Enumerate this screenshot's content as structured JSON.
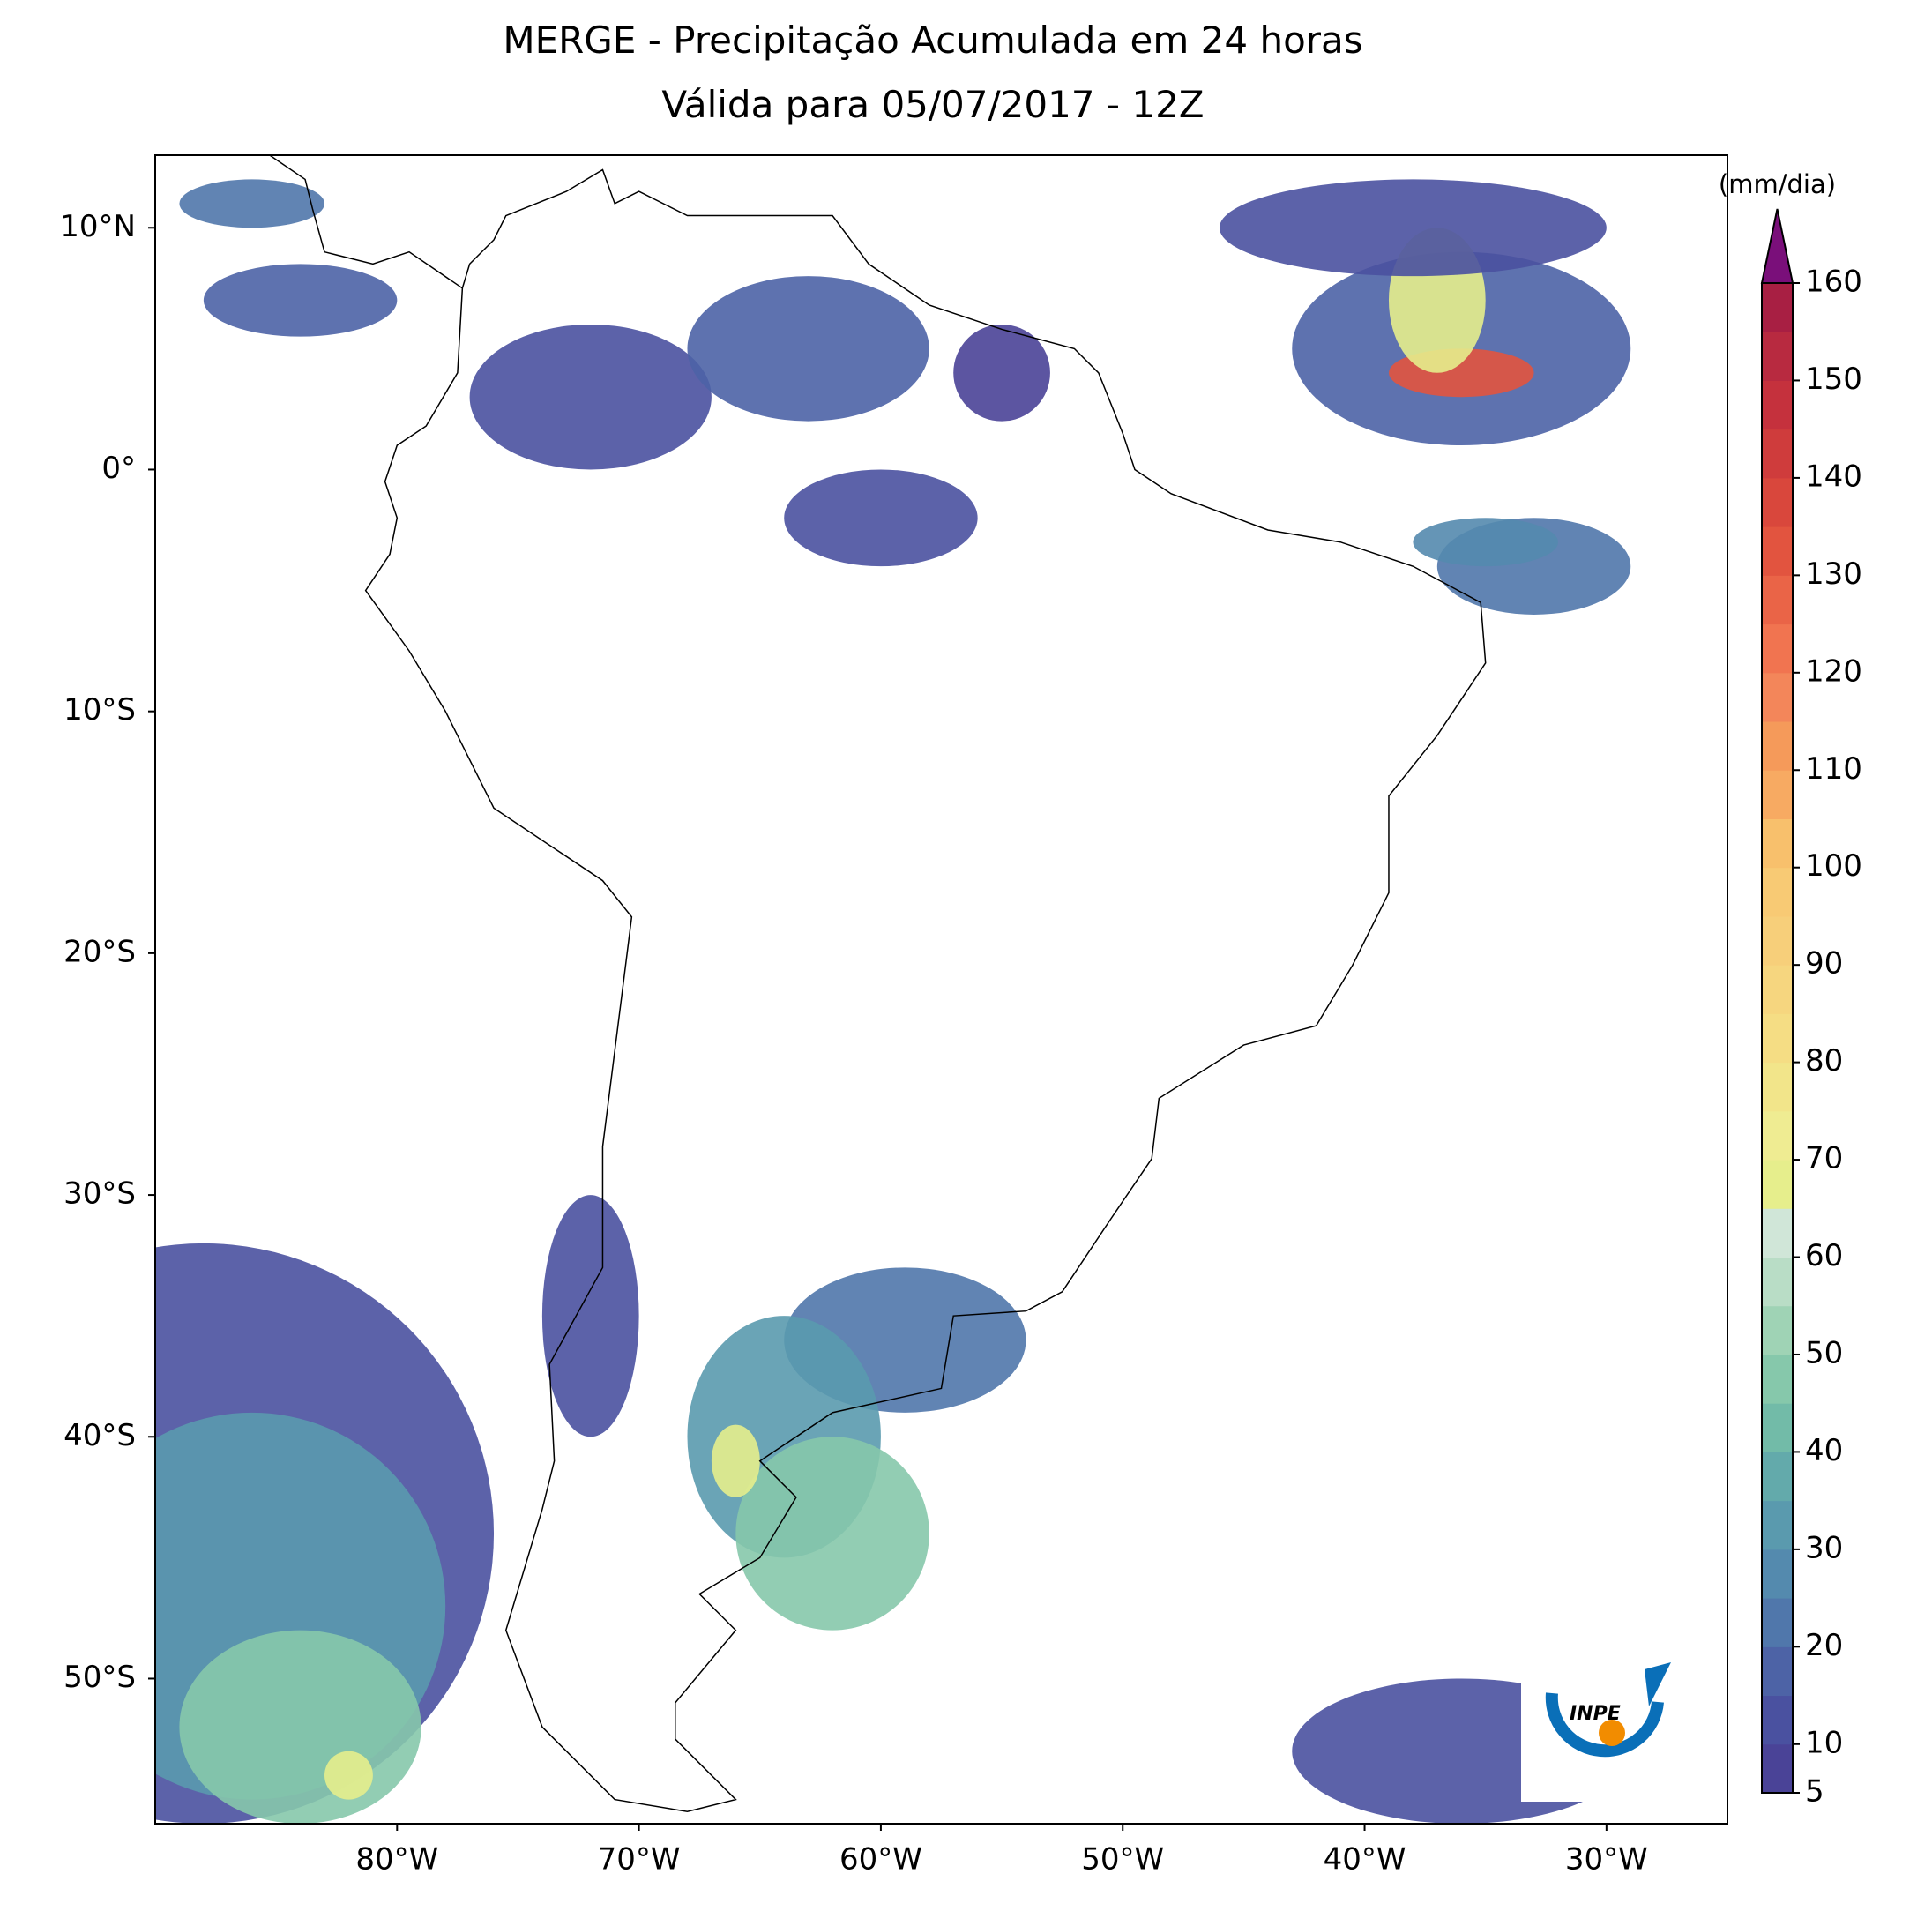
{
  "title": "MERGE - Precipitação Acumulada em 24 horas",
  "subtitle": "Válida para 05/07/2017 - 12Z",
  "map": {
    "lonlim": [
      -90,
      -25
    ],
    "latlim": [
      -56,
      13
    ],
    "xticks": [
      {
        "value": -80,
        "label": "80°W"
      },
      {
        "value": -70,
        "label": "70°W"
      },
      {
        "value": -60,
        "label": "60°W"
      },
      {
        "value": -50,
        "label": "50°W"
      },
      {
        "value": -40,
        "label": "40°W"
      },
      {
        "value": -30,
        "label": "30°W"
      }
    ],
    "yticks": [
      {
        "value": 10,
        "label": "10°N"
      },
      {
        "value": 0,
        "label": "0°"
      },
      {
        "value": -10,
        "label": "10°S"
      },
      {
        "value": -20,
        "label": "20°S"
      },
      {
        "value": -30,
        "label": "30°S"
      },
      {
        "value": -40,
        "label": "40°S"
      },
      {
        "value": -50,
        "label": "50°S"
      }
    ]
  },
  "colorbar": {
    "label": "(mm/dia)",
    "lim": [
      5,
      160
    ],
    "ticks": [
      5,
      10,
      20,
      30,
      40,
      50,
      60,
      70,
      80,
      90,
      100,
      110,
      120,
      130,
      140,
      150,
      160
    ],
    "colors": [
      "#4a4397",
      "#4a51a0",
      "#4d63a6",
      "#5077ab",
      "#548aae",
      "#5a9aae",
      "#63aaab",
      "#72bba8",
      "#86c8ab",
      "#9fd3b5",
      "#b9ddc6",
      "#d0e6d8",
      "#e6ee8c",
      "#efec92",
      "#f2e58a",
      "#f5dd84",
      "#f6d67f",
      "#f7cf7a",
      "#f8ca74",
      "#f8c06c",
      "#f7aa62",
      "#f59a5a",
      "#f3865a",
      "#f17450",
      "#ea6447",
      "#e2543f",
      "#d9473c",
      "#cf3c3c",
      "#c5313d",
      "#b82a40",
      "#a81f43"
    ],
    "extend_color": "#7a0f7a"
  },
  "logo": {
    "text": "INPE"
  }
}
